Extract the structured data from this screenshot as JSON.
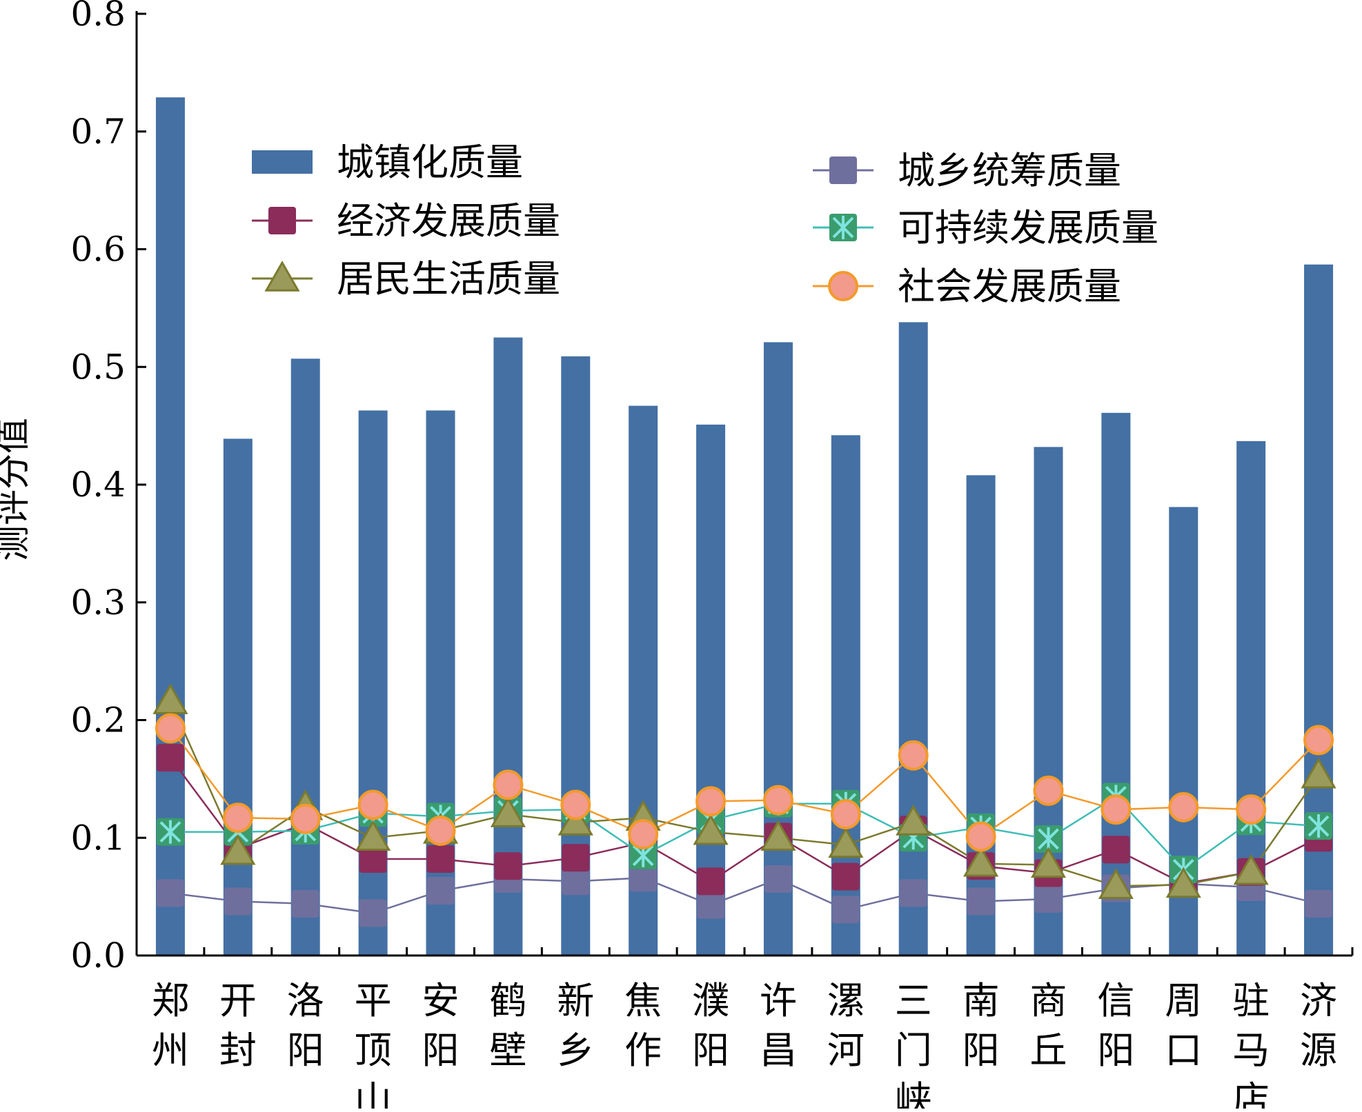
{
  "chart_data": {
    "type": "bar",
    "ylabel": "测评分值",
    "xlabel": "",
    "ylim": [
      0.0,
      0.8
    ],
    "yticks": [
      "0.0",
      "0.1",
      "0.2",
      "0.3",
      "0.4",
      "0.5",
      "0.6",
      "0.7",
      "0.8"
    ],
    "grid": false,
    "legend_position": "top",
    "categories": [
      [
        "郑",
        "州"
      ],
      [
        "开",
        "封"
      ],
      [
        "洛",
        "阳"
      ],
      [
        "平",
        "顶",
        "山"
      ],
      [
        "安",
        "阳"
      ],
      [
        "鹤",
        "壁"
      ],
      [
        "新",
        "乡"
      ],
      [
        "焦",
        "作"
      ],
      [
        "濮",
        "阳"
      ],
      [
        "许",
        "昌"
      ],
      [
        "漯",
        "河"
      ],
      [
        "三",
        "门",
        "峡"
      ],
      [
        "南",
        "阳"
      ],
      [
        "商",
        "丘"
      ],
      [
        "信",
        "阳"
      ],
      [
        "周",
        "口"
      ],
      [
        "驻",
        "马",
        "店"
      ],
      [
        "济",
        "源"
      ]
    ],
    "series": [
      {
        "name": "城镇化质量",
        "kind": "bar",
        "color": "#4470a4",
        "values": [
          0.729,
          0.439,
          0.507,
          0.463,
          0.463,
          0.525,
          0.509,
          0.467,
          0.451,
          0.521,
          0.442,
          0.538,
          0.408,
          0.432,
          0.461,
          0.381,
          0.437,
          0.587
        ]
      },
      {
        "name": "城乡统筹质量",
        "kind": "line",
        "marker": "square",
        "color": "#6f6f9e",
        "values": [
          0.053,
          0.046,
          0.044,
          0.036,
          0.055,
          0.065,
          0.063,
          0.066,
          0.043,
          0.065,
          0.039,
          0.053,
          0.046,
          0.048,
          0.057,
          0.061,
          0.058,
          0.044
        ]
      },
      {
        "name": "经济发展质量",
        "kind": "line",
        "marker": "square",
        "color": "#8b2c5a",
        "values": [
          0.168,
          0.091,
          0.112,
          0.082,
          0.082,
          0.076,
          0.083,
          0.096,
          0.063,
          0.101,
          0.067,
          0.107,
          0.076,
          0.07,
          0.09,
          0.061,
          0.071,
          0.1
        ]
      },
      {
        "name": "可持续发展质量",
        "kind": "line",
        "marker": "x-square",
        "color": "#3fbdb6",
        "values": [
          0.105,
          0.105,
          0.106,
          0.121,
          0.118,
          0.123,
          0.124,
          0.085,
          0.115,
          0.129,
          0.129,
          0.1,
          0.109,
          0.099,
          0.135,
          0.073,
          0.114,
          0.11
        ]
      },
      {
        "name": "居民生活质量",
        "kind": "line",
        "marker": "triangle",
        "color": "#7b7a2e",
        "values": [
          0.216,
          0.088,
          0.126,
          0.1,
          0.106,
          0.12,
          0.113,
          0.117,
          0.105,
          0.1,
          0.094,
          0.113,
          0.078,
          0.077,
          0.059,
          0.06,
          0.071,
          0.153
        ]
      },
      {
        "name": "社会发展质量",
        "kind": "line",
        "marker": "circle",
        "color": "#f39a2b",
        "values": [
          0.193,
          0.117,
          0.116,
          0.128,
          0.106,
          0.145,
          0.128,
          0.103,
          0.131,
          0.132,
          0.12,
          0.17,
          0.101,
          0.14,
          0.124,
          0.126,
          0.124,
          0.183
        ]
      }
    ],
    "colors": {
      "axis": "#000000",
      "marker_square_fill": "#6f6f9e",
      "marker_econ_fill": "#8b2c5a",
      "marker_x_fill": "#3a9c6d",
      "marker_x_cross": "#7fe3de",
      "marker_tri_fill": "#9a9a5a",
      "marker_circle_fill": "#f29a8c"
    }
  }
}
